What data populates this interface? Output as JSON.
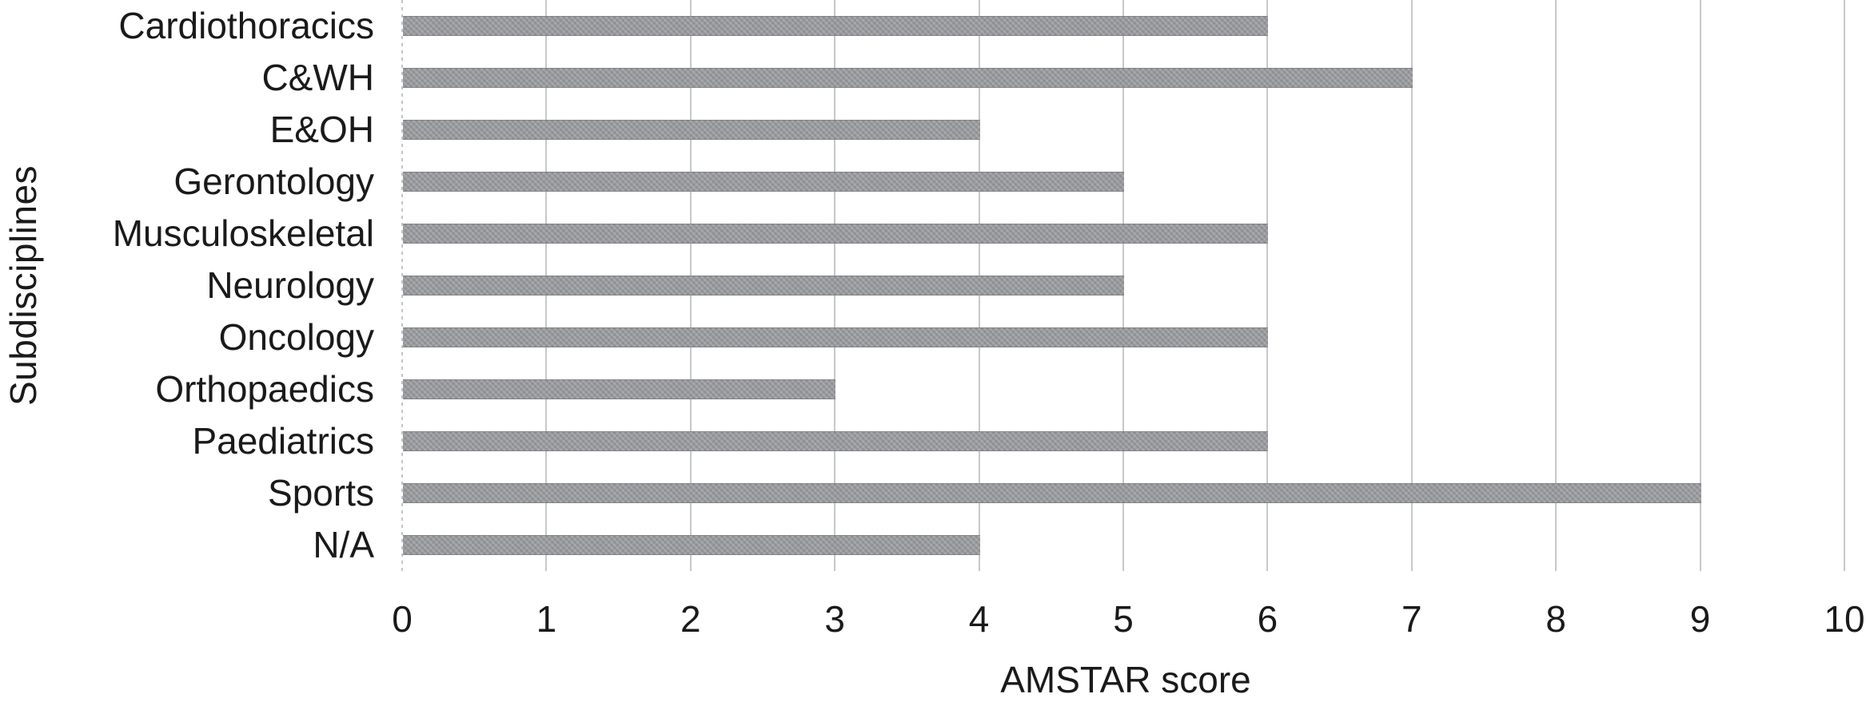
{
  "figure": {
    "background": "#ffffff"
  },
  "chart_data": {
    "type": "bar",
    "orientation": "horizontal",
    "title": "",
    "xlabel": "AMSTAR score",
    "ylabel": "Subdisciplines",
    "categories": [
      "Cardiothoracics",
      "C&WH",
      "E&OH",
      "Gerontology",
      "Musculoskeletal",
      "Neurology",
      "Oncology",
      "Orthopaedics",
      "Paediatrics",
      "Sports",
      "N/A"
    ],
    "values": [
      6,
      7,
      4,
      5,
      6,
      5,
      6,
      3,
      6,
      9,
      4
    ],
    "xlim": [
      0,
      10
    ],
    "xticks": [
      0,
      1,
      2,
      3,
      4,
      5,
      6,
      7,
      8,
      9,
      10
    ],
    "grid": "vertical",
    "zero_axis_style": "dotted",
    "legend": "none",
    "colors": {
      "bar": "#8e9093",
      "gridline": "#c7c8ca",
      "text": "#1a1a1a",
      "background": "#ffffff"
    }
  }
}
